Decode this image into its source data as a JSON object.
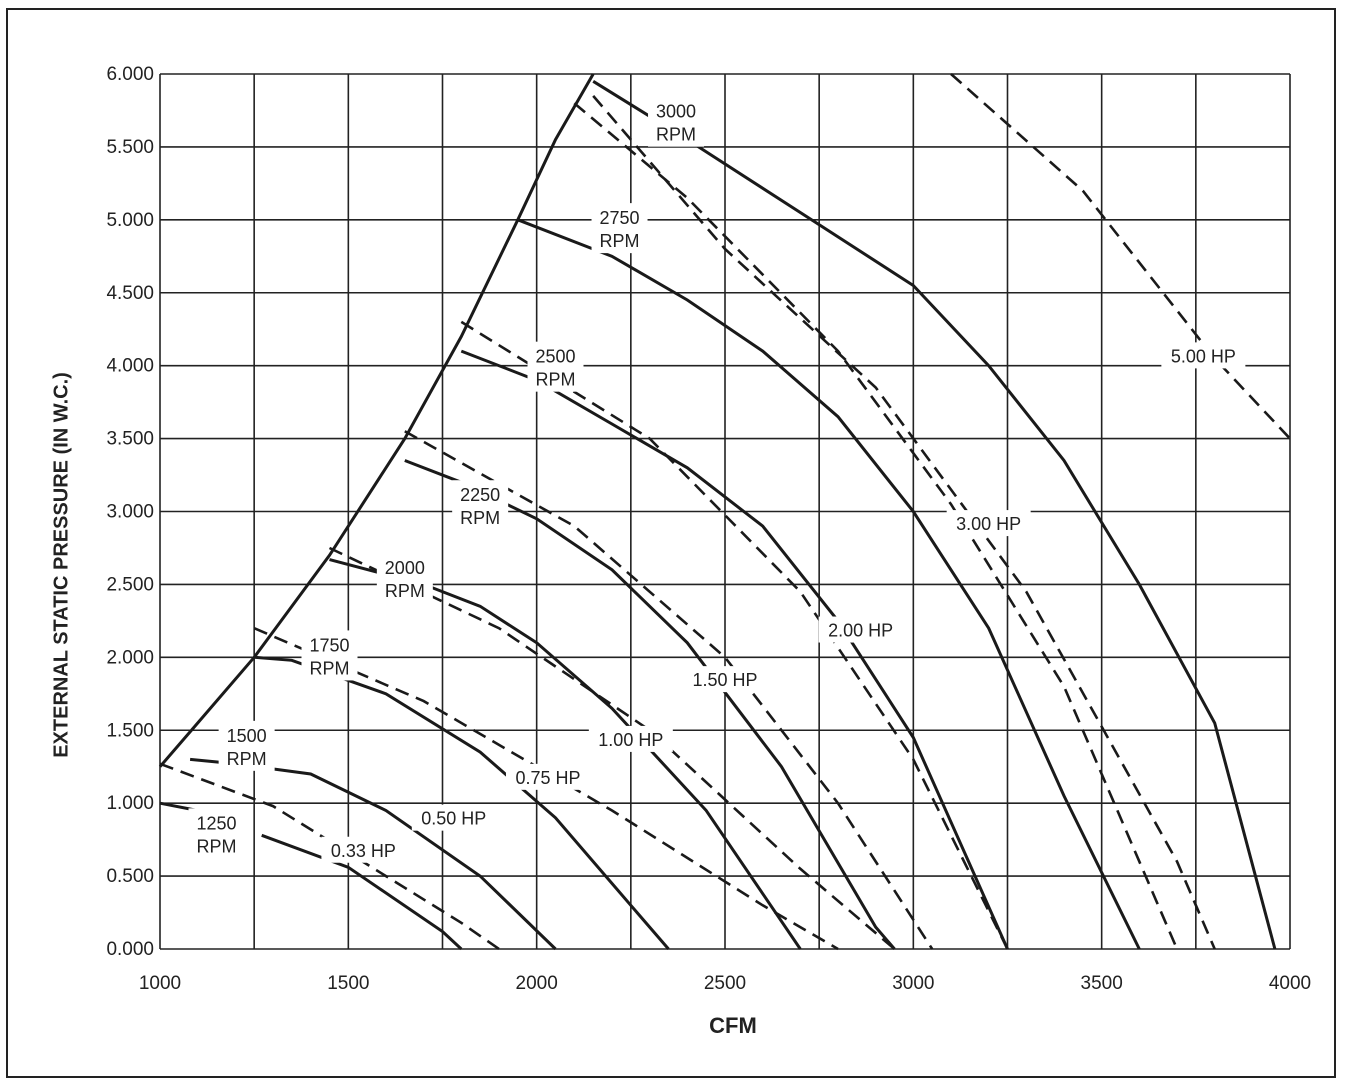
{
  "chart_data": {
    "type": "line",
    "xlabel": "CFM",
    "ylabel": "EXTERNAL STATIC PRESSURE (IN W.C.)",
    "xlim": [
      1000,
      4000
    ],
    "ylim": [
      0,
      6
    ],
    "x_ticks": [
      "1000",
      "1500",
      "2000",
      "2500",
      "3000",
      "3500",
      "4000"
    ],
    "y_ticks": [
      "0.000",
      "0.500",
      "1.000",
      "1.500",
      "2.000",
      "2.500",
      "3.000",
      "3.500",
      "4.000",
      "4.500",
      "5.000",
      "5.500",
      "6.000"
    ],
    "grid": true,
    "boundary": {
      "points": [
        [
          1000,
          1.25
        ],
        [
          1100,
          1.55
        ],
        [
          1250,
          2.0
        ],
        [
          1450,
          2.7
        ],
        [
          1650,
          3.5
        ],
        [
          1800,
          4.2
        ],
        [
          1950,
          5.0
        ],
        [
          2050,
          5.55
        ],
        [
          2150,
          6.0
        ]
      ]
    },
    "rpm_series": [
      {
        "line1": "1250",
        "line2": "RPM",
        "points": [
          [
            1000,
            1.0
          ],
          [
            1100,
            0.95
          ]
        ],
        "points2": [
          [
            1270,
            0.78
          ],
          [
            1500,
            0.56
          ],
          [
            1750,
            0.12
          ],
          [
            1800,
            0.0
          ]
        ]
      },
      {
        "line1": "1500",
        "line2": "RPM",
        "points": [
          [
            1080,
            1.3
          ],
          [
            1200,
            1.27
          ],
          [
            1400,
            1.2
          ],
          [
            1600,
            0.95
          ],
          [
            1850,
            0.5
          ],
          [
            2050,
            0.0
          ]
        ]
      },
      {
        "line1": "1750",
        "line2": "RPM",
        "points": [
          [
            1250,
            2.0
          ],
          [
            1350,
            1.98
          ],
          [
            1600,
            1.75
          ],
          [
            1850,
            1.35
          ],
          [
            2050,
            0.9
          ],
          [
            2250,
            0.3
          ],
          [
            2350,
            0.0
          ]
        ]
      },
      {
        "line1": "2000",
        "line2": "RPM",
        "points": [
          [
            1450,
            2.67
          ],
          [
            1700,
            2.5
          ],
          [
            1850,
            2.35
          ],
          [
            2000,
            2.1
          ],
          [
            2200,
            1.65
          ],
          [
            2450,
            0.95
          ],
          [
            2700,
            0.0
          ]
        ]
      },
      {
        "line1": "2250",
        "line2": "RPM",
        "points": [
          [
            1650,
            3.35
          ],
          [
            1800,
            3.2
          ],
          [
            2000,
            2.95
          ],
          [
            2200,
            2.6
          ],
          [
            2400,
            2.1
          ],
          [
            2650,
            1.25
          ],
          [
            2900,
            0.15
          ],
          [
            2950,
            0.0
          ]
        ]
      },
      {
        "line1": "2500",
        "line2": "RPM",
        "points": [
          [
            1800,
            4.1
          ],
          [
            2000,
            3.9
          ],
          [
            2200,
            3.6
          ],
          [
            2400,
            3.3
          ],
          [
            2600,
            2.9
          ],
          [
            2800,
            2.25
          ],
          [
            3000,
            1.45
          ],
          [
            3250,
            0.0
          ]
        ]
      },
      {
        "line1": "2750",
        "line2": "RPM",
        "points": [
          [
            1950,
            5.0
          ],
          [
            2200,
            4.75
          ],
          [
            2400,
            4.45
          ],
          [
            2600,
            4.1
          ],
          [
            2800,
            3.65
          ],
          [
            3000,
            3.0
          ],
          [
            3200,
            2.2
          ],
          [
            3400,
            1.05
          ],
          [
            3600,
            0.0
          ]
        ]
      },
      {
        "line1": "3000",
        "line2": "RPM",
        "points": [
          [
            2150,
            5.95
          ],
          [
            2400,
            5.55
          ],
          [
            2700,
            5.05
          ],
          [
            3000,
            4.55
          ],
          [
            3200,
            4.0
          ],
          [
            3400,
            3.35
          ],
          [
            3600,
            2.5
          ],
          [
            3800,
            1.55
          ],
          [
            3960,
            0.0
          ]
        ]
      }
    ],
    "hp_series": [
      {
        "name": "0.33 HP",
        "points": [
          [
            1000,
            0.0
          ],
          [
            1000,
            0.0
          ]
        ],
        "points2": [
          [
            1000,
            1.27
          ],
          [
            1300,
            0.98
          ],
          [
            1600,
            0.5
          ],
          [
            1800,
            0.18
          ],
          [
            1900,
            0.0
          ]
        ]
      },
      {
        "name": "0.50 HP",
        "points": [
          [
            1250,
            2.2
          ],
          [
            1700,
            1.7
          ],
          [
            2200,
            0.95
          ],
          [
            2600,
            0.3
          ],
          [
            2800,
            0.0
          ]
        ]
      },
      {
        "name": "0.75 HP",
        "points": [
          [
            1450,
            2.75
          ],
          [
            1900,
            2.2
          ],
          [
            2300,
            1.5
          ],
          [
            2700,
            0.55
          ],
          [
            2950,
            0.0
          ]
        ]
      },
      {
        "name": "1.00 HP",
        "points": [
          [
            1650,
            3.55
          ],
          [
            2100,
            2.9
          ],
          [
            2500,
            2.0
          ],
          [
            2800,
            1.0
          ],
          [
            3050,
            0.0
          ]
        ]
      },
      {
        "name": "1.50 HP",
        "points": [
          [
            1800,
            4.3
          ],
          [
            2300,
            3.5
          ],
          [
            2700,
            2.45
          ],
          [
            3000,
            1.3
          ],
          [
            3250,
            0.0
          ]
        ]
      },
      {
        "name": "2.00 HP",
        "points": [
          [
            2100,
            5.8
          ],
          [
            2400,
            5.15
          ],
          [
            2800,
            4.1
          ],
          [
            3100,
            3.05
          ],
          [
            3400,
            1.8
          ],
          [
            3700,
            0.0
          ]
        ]
      },
      {
        "name": "3.00 HP",
        "points": [
          [
            2150,
            5.85
          ],
          [
            2500,
            4.8
          ],
          [
            2900,
            3.85
          ],
          [
            3300,
            2.45
          ],
          [
            3700,
            0.6
          ],
          [
            3800,
            0.0
          ]
        ]
      },
      {
        "name": "5.00 HP",
        "points": [
          [
            3100,
            6.0
          ],
          [
            3450,
            5.2
          ],
          [
            3800,
            4.05
          ],
          [
            4000,
            3.5
          ]
        ]
      }
    ]
  }
}
